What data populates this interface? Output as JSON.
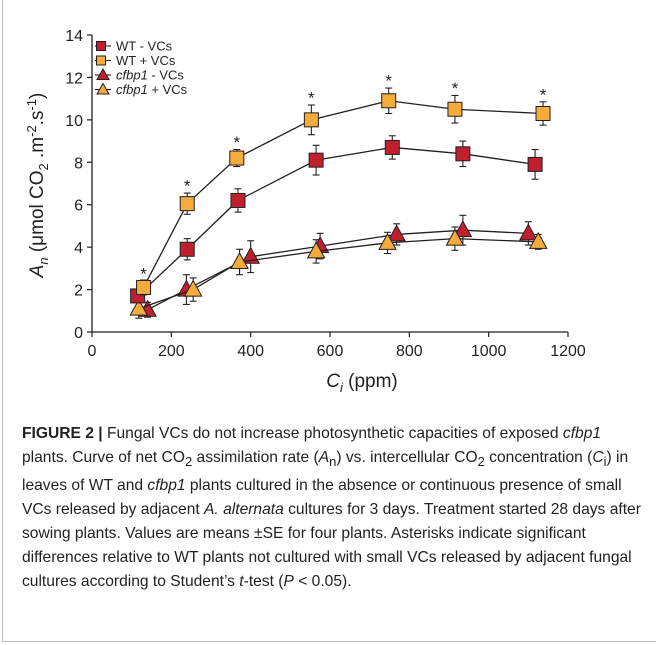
{
  "chart_data": {
    "type": "line",
    "xlim": [
      0,
      1200
    ],
    "ylim": [
      0,
      14
    ],
    "xticks": [
      "0",
      "200",
      "400",
      "600",
      "800",
      "1000",
      "1200"
    ],
    "yticks": [
      "0",
      "2",
      "4",
      "6",
      "8",
      "10",
      "12",
      "14"
    ],
    "xlabel_main": "C",
    "xlabel_sub": "i",
    "xlabel_unit": " (ppm)",
    "ylabel_main": "A",
    "ylabel_sub": "n",
    "ylabel_paren_open": " (μmol CO",
    "ylabel_co2_sub": "2",
    "ylabel_mid": " .m",
    "ylabel_sup1": "-2",
    "ylabel_dot": ".s",
    "ylabel_sup2": "-1",
    "ylabel_close": ")",
    "legend_position": "top-left",
    "significance_marker": "*",
    "colors": {
      "wt_minus": "#c0202e",
      "wt_plus": "#f5ac3a",
      "edge": "#231f20"
    },
    "series": [
      {
        "name": "WT - VCs",
        "marker": "square",
        "color_key": "wt_minus",
        "x": [
          115,
          240,
          368,
          565,
          757,
          935,
          1117
        ],
        "y": [
          1.7,
          3.9,
          6.2,
          8.1,
          8.7,
          8.4,
          7.9
        ],
        "err": [
          0.3,
          0.5,
          0.55,
          0.7,
          0.55,
          0.6,
          0.7
        ]
      },
      {
        "name": "WT + VCs",
        "marker": "square",
        "color_key": "wt_plus",
        "x": [
          130,
          240,
          365,
          553,
          748,
          915,
          1137
        ],
        "y": [
          2.1,
          6.05,
          8.2,
          10.0,
          10.9,
          10.5,
          10.3
        ],
        "err": [
          0.35,
          0.5,
          0.4,
          0.7,
          0.6,
          0.65,
          0.55
        ]
      },
      {
        "name": "cfbp1 - VCs",
        "marker": "triangle",
        "color_key": "wt_minus",
        "x": [
          140,
          238,
          400,
          575,
          768,
          935,
          1100
        ],
        "y": [
          1.05,
          2.0,
          3.55,
          4.05,
          4.6,
          4.8,
          4.65
        ],
        "err": [
          0.35,
          0.7,
          0.75,
          0.6,
          0.5,
          0.7,
          0.55
        ]
      },
      {
        "name": "cfbp1 + VCs",
        "marker": "triangle",
        "color_key": "wt_plus",
        "x": [
          118,
          255,
          372,
          565,
          745,
          915,
          1125
        ],
        "y": [
          1.1,
          2.0,
          3.3,
          3.8,
          4.2,
          4.4,
          4.25
        ],
        "err": [
          0.45,
          0.55,
          0.6,
          0.55,
          0.5,
          0.55,
          0.35
        ]
      }
    ],
    "significance": [
      {
        "x": 130,
        "y": 2.75
      },
      {
        "x": 240,
        "y": 6.9
      },
      {
        "x": 365,
        "y": 8.95
      },
      {
        "x": 553,
        "y": 11.05
      },
      {
        "x": 748,
        "y": 11.85
      },
      {
        "x": 915,
        "y": 11.5
      },
      {
        "x": 1137,
        "y": 11.2
      }
    ]
  },
  "caption": {
    "label": "FIGURE 2 |",
    "t1": " Fungal VCs do not increase photosynthetic capacities of exposed ",
    "i1": "cfbp1",
    "t2": " plants. Curve of net CO",
    "s1": "2",
    "t3": " assimilation rate (",
    "i2": "A",
    "s2": "n",
    "t4": ") vs. intercellular CO",
    "s3": "2",
    "t5": " concentration (",
    "i3": "C",
    "s4": "i",
    "t6": ") in leaves of WT and ",
    "i4": "cfbp1",
    "t7": " plants cultured in the absence or continuous presence of small VCs released by adjacent ",
    "i5": "A. alternata",
    "t8": " cultures for 3 days. Treatment started 28 days after sowing plants. Values are means ±SE for four plants. Asterisks indicate significant differences relative to WT plants not cultured with small VCs released by adjacent fungal cultures according to Student’s ",
    "i6": "t",
    "t9": "-test (",
    "i7": "P",
    "t10": " < 0.05)."
  }
}
